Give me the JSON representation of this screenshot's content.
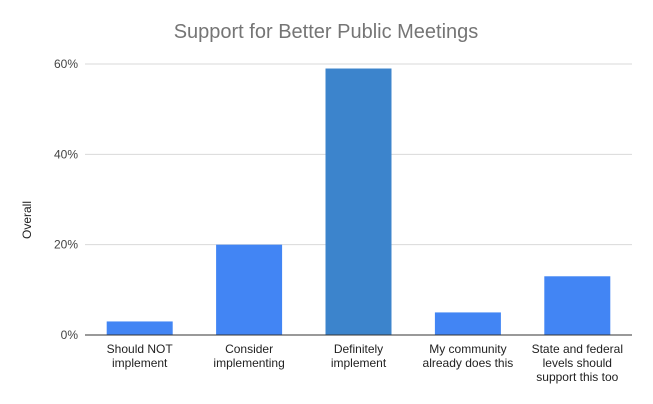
{
  "chart_data": {
    "type": "bar",
    "title": "Support for Better Public Meetings",
    "xlabel": "",
    "ylabel": "Overall",
    "categories": [
      [
        "Should NOT",
        "implement"
      ],
      [
        "Consider",
        "implementing"
      ],
      [
        "Definitely",
        "implement"
      ],
      [
        "My community",
        "already does this"
      ],
      [
        "State and federal",
        "levels should",
        "support this too"
      ]
    ],
    "values": [
      3,
      20,
      59,
      5,
      13
    ],
    "ylim": [
      0,
      60
    ],
    "yticks": [
      0,
      20,
      40,
      60
    ],
    "ytick_labels": [
      "0%",
      "20%",
      "40%",
      "60%"
    ],
    "grid": true,
    "legend": "none",
    "colors": {
      "bar": "#4285f4",
      "bar_highlight": "#3c84cc",
      "grid": "#d9d9d9",
      "axis": "#333333",
      "title": "#757575"
    },
    "highlight_index": 2
  }
}
